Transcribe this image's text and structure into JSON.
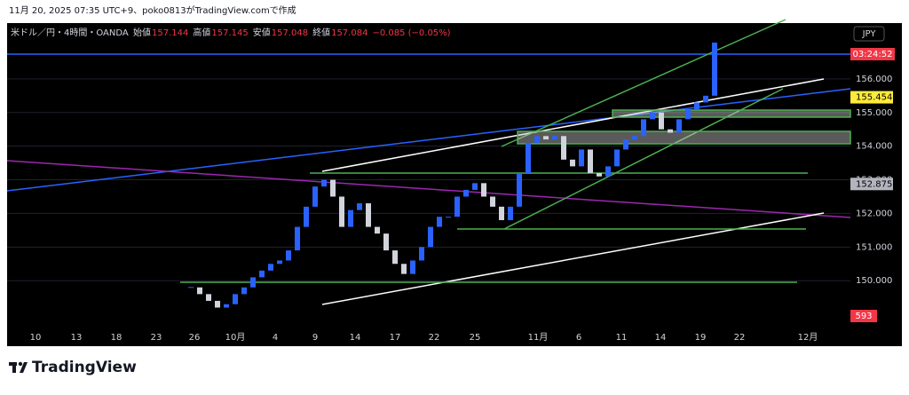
{
  "header": {
    "caption": "11月 20, 2025 07:35 UTC+9、poko0813がTradingView.comで作成"
  },
  "chart_data": {
    "type": "candlestick",
    "symbol": "米ドル／円・4時間・OANDA",
    "ohlc": [
      {
        "label": "始値",
        "value": 157.144
      },
      {
        "label": "高値",
        "value": 157.145
      },
      {
        "label": "安値",
        "value": 157.048
      },
      {
        "label": "終値",
        "value": 157.084
      }
    ],
    "change": "−0.085 (−0.05%)",
    "currency": "JPY",
    "countdown": "03:24:52",
    "volume_label": "593",
    "x_labels": [
      "10",
      "13",
      "18",
      "23",
      "26",
      "10月",
      "4",
      "9",
      "14",
      "17",
      "22",
      "25",
      "11月",
      "6",
      "11",
      "14",
      "19",
      "22",
      "12月"
    ],
    "closes": [
      149.8,
      149.6,
      149.4,
      149.2,
      149.3,
      149.6,
      149.8,
      150.1,
      150.3,
      150.5,
      150.6,
      150.9,
      151.6,
      152.2,
      152.8,
      153.0,
      152.5,
      151.6,
      152.1,
      152.3,
      151.6,
      151.4,
      150.9,
      150.5,
      150.2,
      150.6,
      151.0,
      151.6,
      151.9,
      151.9,
      152.5,
      152.7,
      152.9,
      152.5,
      152.2,
      151.8,
      152.2,
      153.2,
      154.1,
      154.3,
      154.2,
      154.3,
      153.6,
      153.4,
      153.9,
      153.2,
      153.1,
      153.4,
      153.9,
      154.2,
      154.3,
      154.8,
      155.0,
      154.5,
      154.4,
      154.8,
      155.1,
      155.3,
      155.5,
      157.08
    ],
    "up_color": "#2962ff",
    "down_color": "#d1d4dc",
    "ylim": [
      148.58,
      157.66
    ],
    "yticks": [
      {
        "value": 150,
        "label": "150.000"
      },
      {
        "value": 151,
        "label": "151.000"
      },
      {
        "value": 152,
        "label": "152.000"
      },
      {
        "value": 153,
        "label": "153.000"
      },
      {
        "value": 154,
        "label": "154.000"
      },
      {
        "value": 155,
        "label": "155.000"
      },
      {
        "value": 156,
        "label": "156.000"
      }
    ],
    "price_labels": [
      {
        "value": 155.454,
        "label": "155.454",
        "color": "#ffeb3b"
      },
      {
        "value": 152.875,
        "label": "152.875",
        "color": "#b2b5be"
      }
    ],
    "grid": true
  },
  "footer": {
    "logo": "TradingView"
  }
}
